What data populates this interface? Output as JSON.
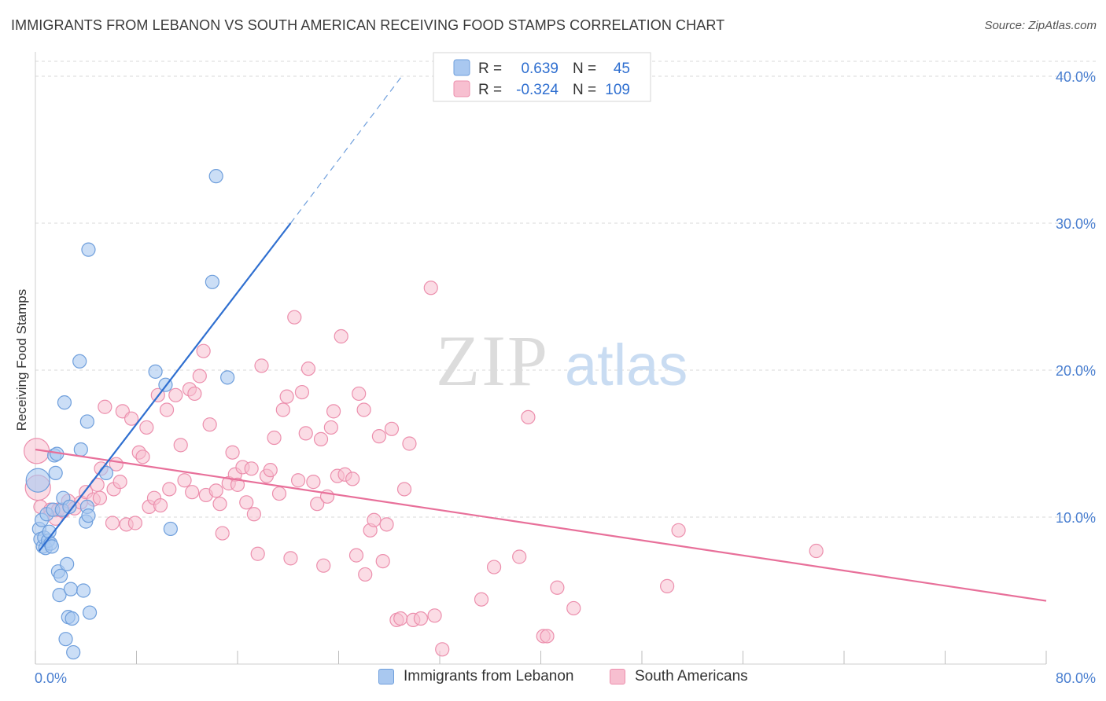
{
  "header": {
    "title": "IMMIGRANTS FROM LEBANON VS SOUTH AMERICAN RECEIVING FOOD STAMPS CORRELATION CHART",
    "source": "Source: ZipAtlas.com"
  },
  "colors": {
    "blue_fill": "#a9c8f0",
    "blue_stroke": "#6f9fdc",
    "blue_line": "#2f6fd0",
    "pink_fill": "#f7bfd0",
    "pink_stroke": "#ec8fad",
    "pink_line": "#e8709a",
    "grid": "#d9d9d9",
    "axis_label": "#4a7fd0",
    "value_text": "#2f6fd0"
  },
  "stats_legend": {
    "rows": [
      {
        "r_label": "R =",
        "r_value": "0.639",
        "n_label": "N =",
        "n_value": "45"
      },
      {
        "r_label": "R =",
        "r_value": "-0.324",
        "n_label": "N =",
        "n_value": "109"
      }
    ]
  },
  "watermark": {
    "zip": "ZIP",
    "atlas": "atlas"
  },
  "chart_data": {
    "type": "scatter",
    "title": "IMMIGRANTS FROM LEBANON VS SOUTH AMERICAN RECEIVING FOOD STAMPS CORRELATION CHART",
    "xlabel": "",
    "ylabel": "Receiving Food Stamps",
    "xlim": [
      0,
      80
    ],
    "ylim": [
      0,
      40
    ],
    "x_tick_labels": [
      "0.0%",
      "80.0%"
    ],
    "y_tick_labels": [
      "10.0%",
      "20.0%",
      "30.0%",
      "40.0%"
    ],
    "y_ticks": [
      10,
      20,
      30,
      40
    ],
    "grid": true,
    "legend_placement": "bottom",
    "series": [
      {
        "name": "Immigrants from Lebanon",
        "color": "blue",
        "points": [
          [
            0.2,
            12.5
          ],
          [
            0.3,
            9.2
          ],
          [
            0.4,
            8.5
          ],
          [
            0.5,
            9.8
          ],
          [
            0.6,
            8.0
          ],
          [
            0.7,
            8.6
          ],
          [
            0.8,
            7.9
          ],
          [
            0.9,
            10.2
          ],
          [
            1.0,
            8.4
          ],
          [
            1.1,
            9.0
          ],
          [
            1.2,
            8.2
          ],
          [
            1.3,
            8.0
          ],
          [
            1.4,
            10.5
          ],
          [
            1.5,
            14.2
          ],
          [
            1.6,
            13.0
          ],
          [
            1.7,
            14.3
          ],
          [
            1.8,
            6.3
          ],
          [
            1.9,
            4.7
          ],
          [
            2.0,
            6.0
          ],
          [
            2.1,
            10.5
          ],
          [
            2.2,
            11.3
          ],
          [
            2.3,
            17.8
          ],
          [
            2.4,
            1.7
          ],
          [
            2.5,
            6.8
          ],
          [
            2.6,
            3.2
          ],
          [
            2.7,
            10.7
          ],
          [
            2.8,
            5.1
          ],
          [
            2.9,
            3.1
          ],
          [
            3.0,
            0.8
          ],
          [
            3.5,
            20.6
          ],
          [
            3.6,
            14.6
          ],
          [
            3.8,
            5.0
          ],
          [
            4.0,
            9.7
          ],
          [
            4.1,
            10.7
          ],
          [
            4.2,
            10.1
          ],
          [
            4.1,
            16.5
          ],
          [
            4.2,
            28.2
          ],
          [
            4.3,
            3.5
          ],
          [
            5.6,
            13.0
          ],
          [
            9.5,
            19.9
          ],
          [
            10.3,
            19.0
          ],
          [
            10.7,
            9.2
          ],
          [
            14.0,
            26.0
          ],
          [
            14.3,
            33.2
          ],
          [
            15.2,
            19.5
          ]
        ],
        "trend": {
          "x0": 0.3,
          "y0": 7.7,
          "x1": 20.2,
          "y1": 30.0,
          "dash_x1": 29.0,
          "dash_y1": 40.0
        }
      },
      {
        "name": "South Americans",
        "color": "pink",
        "points": [
          [
            0.1,
            14.5
          ],
          [
            0.2,
            12.0
          ],
          [
            0.4,
            10.7
          ],
          [
            1.2,
            10.5
          ],
          [
            1.6,
            9.9
          ],
          [
            1.8,
            10.5
          ],
          [
            2.2,
            10.4
          ],
          [
            2.6,
            11.1
          ],
          [
            3.1,
            10.6
          ],
          [
            3.6,
            11.0
          ],
          [
            4.0,
            11.7
          ],
          [
            4.6,
            11.2
          ],
          [
            4.9,
            12.2
          ],
          [
            5.1,
            11.3
          ],
          [
            5.2,
            13.3
          ],
          [
            5.5,
            17.5
          ],
          [
            6.1,
            9.6
          ],
          [
            6.2,
            11.9
          ],
          [
            6.4,
            13.6
          ],
          [
            6.7,
            12.4
          ],
          [
            6.9,
            17.2
          ],
          [
            7.2,
            9.5
          ],
          [
            7.6,
            16.7
          ],
          [
            7.9,
            9.6
          ],
          [
            8.2,
            14.4
          ],
          [
            8.5,
            14.1
          ],
          [
            8.8,
            16.1
          ],
          [
            9.0,
            10.7
          ],
          [
            9.4,
            11.3
          ],
          [
            9.7,
            18.3
          ],
          [
            9.9,
            10.8
          ],
          [
            10.4,
            17.3
          ],
          [
            10.6,
            11.9
          ],
          [
            11.1,
            18.3
          ],
          [
            11.5,
            14.9
          ],
          [
            11.8,
            12.5
          ],
          [
            12.2,
            18.7
          ],
          [
            12.4,
            11.7
          ],
          [
            12.6,
            18.4
          ],
          [
            13.0,
            19.6
          ],
          [
            13.3,
            21.3
          ],
          [
            13.5,
            11.5
          ],
          [
            13.8,
            16.3
          ],
          [
            14.3,
            11.8
          ],
          [
            14.6,
            10.9
          ],
          [
            14.8,
            8.9
          ],
          [
            15.3,
            12.3
          ],
          [
            15.6,
            14.4
          ],
          [
            15.8,
            12.9
          ],
          [
            16.0,
            12.2
          ],
          [
            16.4,
            13.4
          ],
          [
            16.7,
            11.0
          ],
          [
            17.1,
            13.3
          ],
          [
            17.3,
            10.2
          ],
          [
            17.6,
            7.5
          ],
          [
            17.9,
            20.3
          ],
          [
            18.3,
            12.8
          ],
          [
            18.6,
            13.2
          ],
          [
            18.9,
            15.4
          ],
          [
            19.3,
            11.6
          ],
          [
            19.6,
            17.3
          ],
          [
            19.9,
            18.2
          ],
          [
            20.2,
            7.2
          ],
          [
            20.5,
            23.6
          ],
          [
            20.8,
            12.5
          ],
          [
            21.1,
            18.5
          ],
          [
            21.4,
            15.7
          ],
          [
            21.6,
            20.1
          ],
          [
            22.0,
            12.4
          ],
          [
            22.3,
            10.9
          ],
          [
            22.6,
            15.3
          ],
          [
            22.8,
            6.7
          ],
          [
            23.1,
            11.4
          ],
          [
            23.4,
            16.1
          ],
          [
            23.6,
            17.2
          ],
          [
            23.9,
            12.8
          ],
          [
            24.2,
            22.3
          ],
          [
            24.5,
            12.9
          ],
          [
            25.1,
            12.6
          ],
          [
            25.4,
            7.4
          ],
          [
            25.6,
            18.4
          ],
          [
            26.0,
            17.3
          ],
          [
            26.1,
            6.1
          ],
          [
            26.5,
            9.1
          ],
          [
            26.8,
            9.8
          ],
          [
            27.2,
            15.5
          ],
          [
            27.5,
            7.0
          ],
          [
            27.8,
            9.5
          ],
          [
            28.2,
            16.0
          ],
          [
            28.6,
            3.0
          ],
          [
            28.9,
            3.1
          ],
          [
            29.2,
            11.9
          ],
          [
            29.6,
            15.0
          ],
          [
            29.9,
            3.0
          ],
          [
            30.5,
            3.1
          ],
          [
            31.3,
            25.6
          ],
          [
            31.6,
            3.3
          ],
          [
            32.2,
            1.0
          ],
          [
            35.3,
            4.4
          ],
          [
            36.3,
            6.6
          ],
          [
            38.3,
            7.3
          ],
          [
            39.0,
            16.8
          ],
          [
            40.2,
            1.9
          ],
          [
            40.5,
            1.9
          ],
          [
            41.3,
            5.2
          ],
          [
            42.6,
            3.8
          ],
          [
            50.0,
            5.3
          ],
          [
            50.9,
            9.1
          ],
          [
            61.8,
            7.7
          ]
        ],
        "trend": {
          "x0": 0.0,
          "y0": 14.6,
          "x1": 80.0,
          "y1": 4.3
        }
      }
    ]
  },
  "bottom_legend": [
    {
      "label": "Immigrants from Lebanon",
      "color": "blue"
    },
    {
      "label": "South Americans",
      "color": "pink"
    }
  ]
}
